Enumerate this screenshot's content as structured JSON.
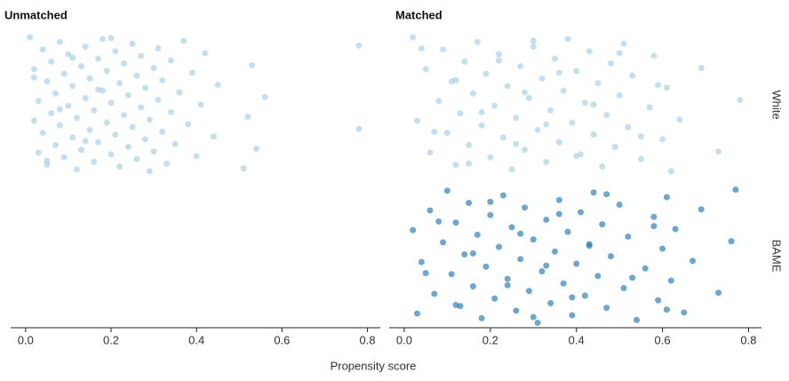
{
  "chart_data": {
    "type": "strip",
    "x_label": "Propensity score",
    "xlim": [
      -0.035,
      0.83
    ],
    "xticks": [
      {
        "value": 0,
        "label": "0.0"
      },
      0.2,
      0.4,
      0.6,
      0.8
    ],
    "rows": [
      "White",
      "BAME"
    ],
    "colors": [
      "#a6cee3",
      "#1f78b4"
    ],
    "panels": [
      {
        "title": "Unmatched",
        "series": [
          {
            "x": [
              0.01,
              0.02,
              0.02,
              0.03,
              0.03,
              0.04,
              0.04,
              0.05,
              0.05,
              0.06,
              0.06,
              0.07,
              0.07,
              0.08,
              0.08,
              0.09,
              0.09,
              0.1,
              0.1,
              0.11,
              0.11,
              0.12,
              0.12,
              0.13,
              0.13,
              0.14,
              0.14,
              0.15,
              0.15,
              0.16,
              0.16,
              0.17,
              0.17,
              0.18,
              0.18,
              0.19,
              0.19,
              0.2,
              0.2,
              0.21,
              0.21,
              0.22,
              0.22,
              0.23,
              0.23,
              0.24,
              0.24,
              0.25,
              0.25,
              0.26,
              0.26,
              0.27,
              0.27,
              0.28,
              0.28,
              0.29,
              0.29,
              0.3,
              0.3,
              0.31,
              0.31,
              0.32,
              0.32,
              0.33,
              0.34,
              0.34,
              0.35,
              0.36,
              0.37,
              0.38,
              0.39,
              0.4,
              0.41,
              0.42,
              0.44,
              0.45,
              0.51,
              0.52,
              0.53,
              0.54,
              0.56,
              0.78,
              0.78,
              0.02,
              0.05,
              0.08,
              0.11,
              0.14,
              0.17,
              0.2
            ]
          },
          {
            "x": []
          }
        ]
      },
      {
        "title": "Matched",
        "series": [
          {
            "x": [
              0.02,
              0.03,
              0.05,
              0.06,
              0.08,
              0.09,
              0.1,
              0.11,
              0.12,
              0.13,
              0.14,
              0.15,
              0.16,
              0.17,
              0.18,
              0.19,
              0.2,
              0.21,
              0.22,
              0.23,
              0.24,
              0.25,
              0.26,
              0.27,
              0.28,
              0.29,
              0.3,
              0.31,
              0.32,
              0.33,
              0.34,
              0.35,
              0.36,
              0.37,
              0.38,
              0.39,
              0.4,
              0.41,
              0.42,
              0.43,
              0.44,
              0.45,
              0.46,
              0.47,
              0.48,
              0.49,
              0.5,
              0.51,
              0.52,
              0.53,
              0.55,
              0.57,
              0.58,
              0.6,
              0.61,
              0.62,
              0.64,
              0.69,
              0.73,
              0.78,
              0.04,
              0.07,
              0.12,
              0.15,
              0.18,
              0.22,
              0.26,
              0.28,
              0.3,
              0.33,
              0.36,
              0.4,
              0.44,
              0.5,
              0.55,
              0.59
            ]
          },
          {
            "x": [
              0.02,
              0.03,
              0.04,
              0.06,
              0.07,
              0.09,
              0.1,
              0.11,
              0.12,
              0.13,
              0.14,
              0.15,
              0.16,
              0.17,
              0.18,
              0.19,
              0.2,
              0.21,
              0.22,
              0.23,
              0.24,
              0.25,
              0.26,
              0.27,
              0.28,
              0.29,
              0.3,
              0.31,
              0.32,
              0.33,
              0.34,
              0.35,
              0.36,
              0.37,
              0.38,
              0.39,
              0.4,
              0.41,
              0.42,
              0.43,
              0.44,
              0.45,
              0.46,
              0.47,
              0.48,
              0.5,
              0.51,
              0.52,
              0.54,
              0.56,
              0.58,
              0.59,
              0.6,
              0.61,
              0.62,
              0.63,
              0.65,
              0.67,
              0.69,
              0.73,
              0.76,
              0.77,
              0.05,
              0.08,
              0.12,
              0.16,
              0.2,
              0.24,
              0.27,
              0.3,
              0.33,
              0.36,
              0.39,
              0.43,
              0.47,
              0.53,
              0.58,
              0.61
            ]
          }
        ]
      }
    ]
  }
}
